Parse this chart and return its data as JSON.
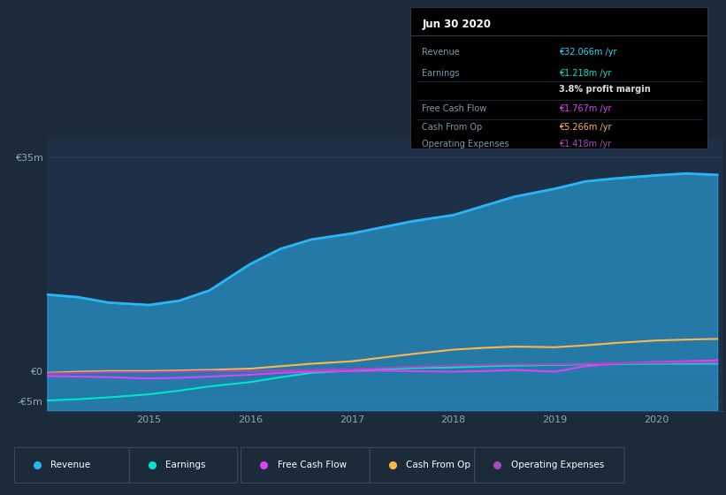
{
  "bg_color": "#1c2b3a",
  "plot_bg_color": "#1e3048",
  "grid_color": "#2a4060",
  "title_text": "Jun 30 2020",
  "info_box": {
    "Revenue": {
      "value": "€32.066m",
      "color": "#29d4f5"
    },
    "Earnings": {
      "value": "€1.218m",
      "color": "#00e5cc"
    },
    "profit_margin": {
      "value": "3.8%",
      "color": "#ffffff"
    },
    "Free Cash Flow": {
      "value": "€1.767m",
      "color": "#e040fb"
    },
    "Cash From Op": {
      "value": "€5.266m",
      "color": "#ffb74d"
    },
    "Operating Expenses": {
      "value": "€1.418m",
      "color": "#ab47bc"
    }
  },
  "years": [
    2014.0,
    2014.3,
    2014.6,
    2015.0,
    2015.3,
    2015.6,
    2016.0,
    2016.3,
    2016.6,
    2017.0,
    2017.3,
    2017.6,
    2018.0,
    2018.3,
    2018.6,
    2019.0,
    2019.3,
    2019.6,
    2020.0,
    2020.3,
    2020.6
  ],
  "revenue": [
    12.5,
    12.1,
    11.2,
    10.8,
    11.5,
    13.2,
    17.5,
    20.0,
    21.5,
    22.5,
    23.5,
    24.5,
    25.5,
    27.0,
    28.5,
    29.8,
    31.0,
    31.5,
    32.0,
    32.3,
    32.066
  ],
  "earnings": [
    -4.8,
    -4.6,
    -4.3,
    -3.8,
    -3.2,
    -2.5,
    -1.8,
    -1.0,
    -0.3,
    0.1,
    0.3,
    0.5,
    0.6,
    0.8,
    0.9,
    1.0,
    1.1,
    1.15,
    1.2,
    1.21,
    1.218
  ],
  "free_cash_flow": [
    -0.8,
    -0.9,
    -1.0,
    -1.2,
    -1.1,
    -0.9,
    -0.6,
    -0.3,
    -0.1,
    0.0,
    0.1,
    0.0,
    -0.1,
    0.0,
    0.2,
    -0.1,
    0.8,
    1.2,
    1.5,
    1.6,
    1.767
  ],
  "cash_from_op": [
    -0.3,
    -0.1,
    0.0,
    0.0,
    0.1,
    0.2,
    0.4,
    0.8,
    1.2,
    1.6,
    2.2,
    2.8,
    3.5,
    3.8,
    4.0,
    3.9,
    4.2,
    4.6,
    5.0,
    5.15,
    5.266
  ],
  "operating_expenses": [
    -0.4,
    -0.3,
    -0.2,
    -0.2,
    -0.1,
    0.0,
    0.0,
    0.1,
    0.2,
    0.3,
    0.5,
    0.7,
    0.9,
    1.0,
    1.1,
    1.1,
    1.2,
    1.3,
    1.35,
    1.4,
    1.418
  ],
  "colors": {
    "revenue": "#29b6f6",
    "earnings": "#00e5cc",
    "free_cash_flow": "#e040fb",
    "cash_from_op": "#ffb74d",
    "operating_expenses": "#ab47bc"
  },
  "ylim": [
    -6.5,
    38
  ],
  "yticks": [
    -5,
    0,
    35
  ],
  "ytick_labels": [
    "-€5m",
    "€0",
    "€35m"
  ],
  "xticks": [
    2015,
    2016,
    2017,
    2018,
    2019,
    2020
  ],
  "xmin": 2014.0,
  "xmax": 2020.65,
  "legend_labels": [
    "Revenue",
    "Earnings",
    "Free Cash Flow",
    "Cash From Op",
    "Operating Expenses"
  ]
}
